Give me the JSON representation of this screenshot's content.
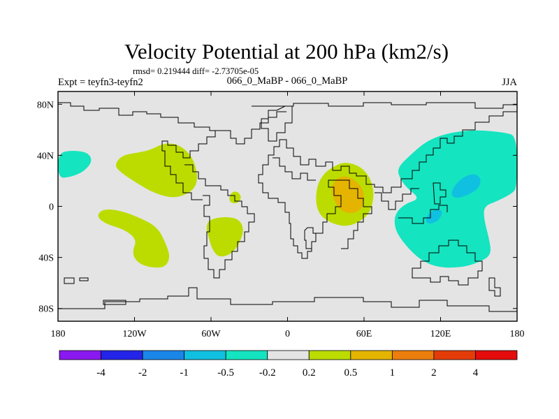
{
  "chart_data": {
    "type": "heatmap",
    "title": "Velocity Potential at 200 hPa (km2/s)",
    "stats": "rmsd= 0.219444 diff= -2.73705e-05",
    "experiment": "Expt = teyfn3-teyfn2",
    "comparison": "066_0_MaBP - 066_0_MaBP",
    "season": "JJA",
    "x_range": [
      -180,
      180
    ],
    "y_range": [
      -90,
      90
    ],
    "x_ticks": [
      {
        "value": -180,
        "label": "180"
      },
      {
        "value": -120,
        "label": "120W"
      },
      {
        "value": -60,
        "label": "60W"
      },
      {
        "value": 0,
        "label": "0"
      },
      {
        "value": 60,
        "label": "60E"
      },
      {
        "value": 120,
        "label": "120E"
      },
      {
        "value": 180,
        "label": "180"
      }
    ],
    "y_ticks": [
      {
        "value": 80,
        "label": "80N"
      },
      {
        "value": 40,
        "label": "40N"
      },
      {
        "value": 0,
        "label": "0"
      },
      {
        "value": -40,
        "label": "40S"
      },
      {
        "value": -80,
        "label": "80S"
      }
    ],
    "colorbar": {
      "colors": [
        "#8a18f0",
        "#2424e8",
        "#1a86e8",
        "#10c0e0",
        "#14e4c0",
        "#e4e4e4",
        "#bcdc00",
        "#e4b400",
        "#ec7e0c",
        "#e43c08",
        "#e40c0c"
      ],
      "labels": [
        "-4",
        "-2",
        "-1",
        "-0.5",
        "-0.2",
        "0.2",
        "0.5",
        "1",
        "2",
        "4"
      ]
    },
    "regions": [
      {
        "name": "aqua-northeast-pacific",
        "level": -0.2,
        "color": "#14e4c0",
        "points": [
          [
            -180,
            42
          ],
          [
            -168,
            44
          ],
          [
            -156,
            42
          ],
          [
            -153,
            35
          ],
          [
            -160,
            27
          ],
          [
            -170,
            23
          ],
          [
            -180,
            22
          ]
        ]
      },
      {
        "name": "green-tropical-pacific",
        "level": 0.2,
        "color": "#bcdc00",
        "points": [
          [
            -108,
            44
          ],
          [
            -96,
            50
          ],
          [
            -84,
            48
          ],
          [
            -74,
            38
          ],
          [
            -70,
            22
          ],
          [
            -74,
            12
          ],
          [
            -88,
            6
          ],
          [
            -104,
            10
          ],
          [
            -118,
            18
          ],
          [
            -130,
            26
          ],
          [
            -136,
            32
          ],
          [
            -130,
            40
          ],
          [
            -118,
            42
          ]
        ]
      },
      {
        "name": "green-south-america",
        "level": 0.2,
        "color": "#bcdc00",
        "points": [
          [
            -145,
            -2
          ],
          [
            -132,
            -3
          ],
          [
            -118,
            -8
          ],
          [
            -102,
            -16
          ],
          [
            -95,
            -30
          ],
          [
            -92,
            -40
          ],
          [
            -96,
            -48
          ],
          [
            -108,
            -48
          ],
          [
            -118,
            -44
          ],
          [
            -122,
            -36
          ],
          [
            -118,
            -26
          ],
          [
            -128,
            -18
          ],
          [
            -142,
            -14
          ],
          [
            -150,
            -8
          ]
        ]
      },
      {
        "name": "green-central-america-patch",
        "level": 0.2,
        "color": "#bcdc00",
        "points": [
          [
            -61,
            -10
          ],
          [
            -48,
            -8
          ],
          [
            -38,
            -10
          ],
          [
            -34,
            -18
          ],
          [
            -38,
            -30
          ],
          [
            -45,
            -38
          ],
          [
            -54,
            -40
          ],
          [
            -59,
            -34
          ],
          [
            -62,
            -24
          ],
          [
            -64,
            -16
          ]
        ]
      },
      {
        "name": "green-atlantic-blob",
        "level": 0.2,
        "color": "#bcdc00",
        "points": [
          [
            -43,
            12
          ],
          [
            -38,
            11
          ],
          [
            -36,
            6
          ],
          [
            -40,
            2
          ],
          [
            -45,
            3
          ],
          [
            -46,
            7
          ]
        ]
      },
      {
        "name": "green-africa-indian-ocean",
        "level": 0.2,
        "color": "#bcdc00",
        "points": [
          [
            34,
            30
          ],
          [
            44,
            35
          ],
          [
            56,
            32
          ],
          [
            64,
            24
          ],
          [
            68,
            12
          ],
          [
            66,
            -2
          ],
          [
            60,
            -10
          ],
          [
            48,
            -16
          ],
          [
            36,
            -14
          ],
          [
            26,
            -8
          ],
          [
            22,
            2
          ],
          [
            23,
            16
          ],
          [
            28,
            25
          ]
        ]
      },
      {
        "name": "orange-arabian-sea",
        "level": 0.5,
        "color": "#e4b400",
        "points": [
          [
            38,
            22
          ],
          [
            46,
            24
          ],
          [
            54,
            20
          ],
          [
            60,
            12
          ],
          [
            60,
            2
          ],
          [
            56,
            -4
          ],
          [
            48,
            -6
          ],
          [
            40,
            -2
          ],
          [
            36,
            6
          ],
          [
            34,
            14
          ]
        ]
      },
      {
        "name": "aqua-west-pacific",
        "level": -0.2,
        "color": "#14e4c0",
        "points": [
          [
            96,
            40
          ],
          [
            110,
            52
          ],
          [
            128,
            58
          ],
          [
            148,
            60
          ],
          [
            170,
            58
          ],
          [
            180,
            55
          ],
          [
            180,
            15
          ],
          [
            176,
            10
          ],
          [
            164,
            4
          ],
          [
            154,
            0
          ],
          [
            154,
            -10
          ],
          [
            158,
            -25
          ],
          [
            160,
            -38
          ],
          [
            150,
            -44
          ],
          [
            136,
            -48
          ],
          [
            118,
            -48
          ],
          [
            104,
            -42
          ],
          [
            92,
            -30
          ],
          [
            84,
            -18
          ],
          [
            84,
            -6
          ],
          [
            92,
            2
          ],
          [
            104,
            6
          ],
          [
            94,
            14
          ],
          [
            88,
            22
          ],
          [
            86,
            30
          ]
        ]
      },
      {
        "name": "blue-philippine-sea",
        "level": -0.5,
        "color": "#10c0e0",
        "points": [
          [
            128,
            12
          ],
          [
            136,
            22
          ],
          [
            146,
            26
          ],
          [
            152,
            22
          ],
          [
            150,
            14
          ],
          [
            140,
            8
          ],
          [
            130,
            6
          ]
        ]
      },
      {
        "name": "blue-maritime-continent",
        "level": -0.5,
        "color": "#10c0e0",
        "points": [
          [
            108,
            -10
          ],
          [
            112,
            -4
          ],
          [
            118,
            -2
          ],
          [
            122,
            -4
          ],
          [
            118,
            -12
          ],
          [
            110,
            -14
          ]
        ]
      }
    ]
  }
}
